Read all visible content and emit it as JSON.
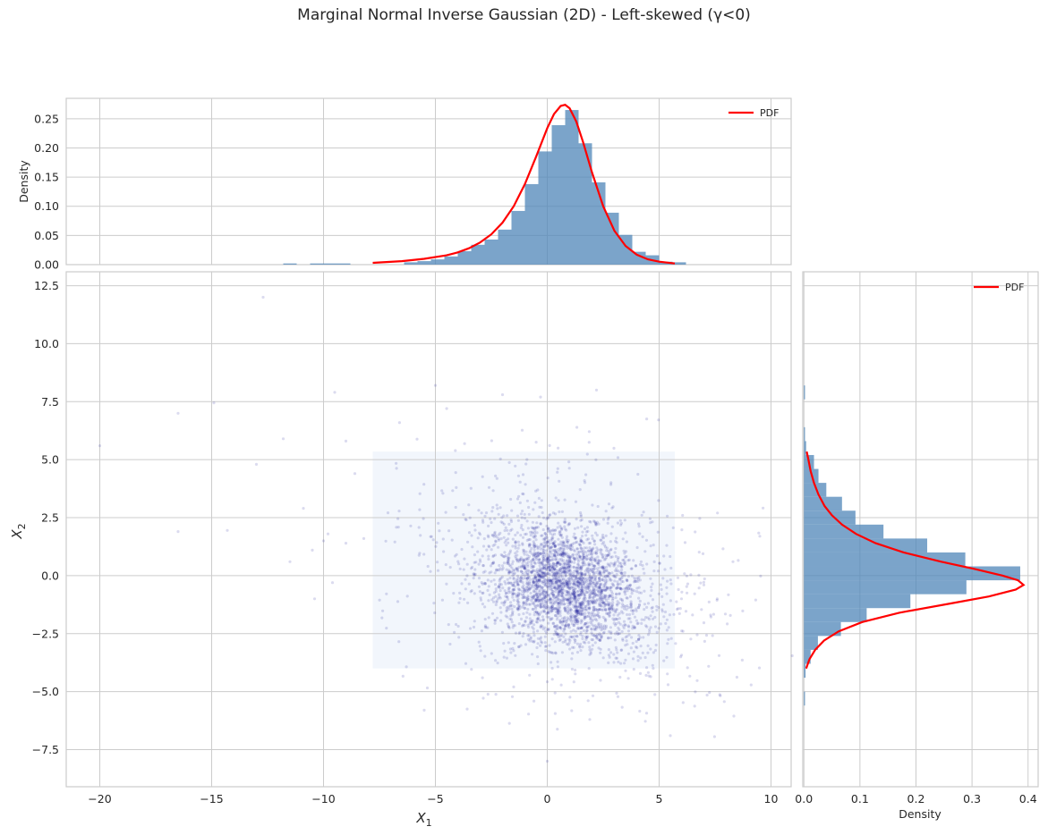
{
  "figure": {
    "suptitle": "Marginal Normal Inverse Gaussian (2D) - Left-skewed (γ<0)",
    "colors": {
      "hist_fill": "#4f86b8",
      "hist_alpha": 0.75,
      "pdf_line": "#ff0000",
      "scatter": "#00008b",
      "grid": "#cccccc",
      "shaded_region": "#dbe6f7"
    }
  },
  "chart_data": [
    {
      "id": "top-marginal",
      "type": "bar",
      "title": "",
      "xlabel": "",
      "ylabel": "Density",
      "xlim": [
        -21.5,
        10.9
      ],
      "ylim": [
        0,
        0.285
      ],
      "yticks": [
        "0.00",
        "0.05",
        "0.10",
        "0.15",
        "0.20",
        "0.25"
      ],
      "ytick_values": [
        0,
        0.05,
        0.1,
        0.15,
        0.2,
        0.25
      ],
      "xtick_values": [
        -20,
        -15,
        -10,
        -5,
        0,
        5,
        10
      ],
      "grid": true,
      "legend": {
        "entries": [
          "PDF"
        ],
        "position": "upper right"
      },
      "histogram": {
        "bin_edges": [
          -11.8,
          -11.2,
          -10.6,
          -10.0,
          -9.4,
          -8.8,
          -8.2,
          -7.6,
          -7.0,
          -6.4,
          -5.8,
          -5.2,
          -4.6,
          -4.0,
          -3.4,
          -2.8,
          -2.2,
          -1.6,
          -1.0,
          -0.4,
          0.2,
          0.8,
          1.4,
          2.0,
          2.6,
          3.2,
          3.8,
          4.4,
          5.0,
          5.6,
          6.2
        ],
        "densities": [
          0.002,
          0,
          0.002,
          0.002,
          0.002,
          0,
          0,
          0,
          0,
          0.004,
          0.006,
          0.009,
          0.014,
          0.023,
          0.034,
          0.043,
          0.06,
          0.092,
          0.138,
          0.194,
          0.239,
          0.265,
          0.208,
          0.141,
          0.089,
          0.051,
          0.022,
          0.016,
          0.005,
          0.004
        ]
      },
      "pdf": {
        "x": [
          -7.8,
          -6.5,
          -5.5,
          -4.5,
          -4.0,
          -3.5,
          -3.0,
          -2.5,
          -2.0,
          -1.5,
          -1.0,
          -0.5,
          0.0,
          0.3,
          0.6,
          0.8,
          1.0,
          1.3,
          1.6,
          2.0,
          2.5,
          3.0,
          3.5,
          4.0,
          4.5,
          5.0,
          5.7
        ],
        "y": [
          0.003,
          0.006,
          0.01,
          0.016,
          0.021,
          0.028,
          0.038,
          0.052,
          0.072,
          0.1,
          0.138,
          0.185,
          0.234,
          0.258,
          0.272,
          0.274,
          0.268,
          0.245,
          0.21,
          0.158,
          0.1,
          0.058,
          0.032,
          0.017,
          0.009,
          0.005,
          0.002
        ]
      }
    },
    {
      "id": "joint-scatter",
      "type": "scatter",
      "xlabel": "X_1",
      "ylabel": "X_2",
      "xlim": [
        -21.5,
        10.9
      ],
      "ylim": [
        -9.1,
        13.1
      ],
      "xticks": [
        "−20",
        "−15",
        "−10",
        "−5",
        "0",
        "5",
        "10"
      ],
      "xtick_values": [
        -20,
        -15,
        -10,
        -5,
        0,
        5,
        10
      ],
      "yticks": [
        "−7.5",
        "−5.0",
        "−2.5",
        "0.0",
        "2.5",
        "5.0",
        "7.5",
        "10.0",
        "12.5"
      ],
      "ytick_values": [
        -7.5,
        -5,
        -2.5,
        0,
        2.5,
        5,
        7.5,
        10,
        12.5
      ],
      "grid": true,
      "shaded_region": {
        "x": [
          -7.8,
          5.7
        ],
        "y": [
          -4.0,
          5.35
        ]
      },
      "cluster": {
        "center": [
          0.8,
          -0.4
        ],
        "n_points": 5000,
        "sd_x": 1.7,
        "sd_y": 1.3,
        "correlation": -0.25
      },
      "outliers": [
        [
          -20.0,
          5.6
        ],
        [
          -16.5,
          1.9
        ],
        [
          -16.5,
          7.0
        ],
        [
          -14.9,
          7.45
        ],
        [
          -14.3,
          1.95
        ],
        [
          -12.7,
          12.0
        ],
        [
          -13.0,
          4.8
        ],
        [
          -11.8,
          5.9
        ],
        [
          -11.5,
          0.6
        ],
        [
          -10.9,
          2.9
        ],
        [
          -10.4,
          -1.0
        ],
        [
          -10.5,
          1.1
        ],
        [
          -10.0,
          1.5
        ],
        [
          -9.8,
          1.8
        ],
        [
          -9.6,
          -0.3
        ],
        [
          -9.5,
          7.9
        ],
        [
          -9.0,
          5.8
        ],
        [
          -9.0,
          1.4
        ],
        [
          -8.6,
          4.4
        ],
        [
          -8.2,
          1.6
        ],
        [
          -5.0,
          8.2
        ],
        [
          -5.5,
          -5.8
        ],
        [
          -2.0,
          7.8
        ],
        [
          -1.5,
          -4.8
        ],
        [
          -0.3,
          7.7
        ],
        [
          1.9,
          -6.2
        ],
        [
          2.2,
          8.0
        ],
        [
          5.5,
          -6.9
        ],
        [
          0.0,
          -8.0
        ],
        [
          7.3,
          -1.7
        ],
        [
          8.3,
          0.6
        ],
        [
          9.5,
          1.7
        ],
        [
          7.0,
          -0.4
        ],
        [
          6.0,
          -1.0
        ]
      ]
    },
    {
      "id": "right-marginal",
      "type": "bar",
      "orientation": "horizontal",
      "xlabel": "Density",
      "ylabel": "",
      "xlim": [
        -0.002,
        0.418
      ],
      "ylim": [
        -9.1,
        13.1
      ],
      "xticks": [
        "0.0",
        "0.1",
        "0.2",
        "0.3",
        "0.4"
      ],
      "xtick_values": [
        0,
        0.1,
        0.2,
        0.3,
        0.4
      ],
      "grid": true,
      "legend": {
        "entries": [
          "PDF"
        ],
        "position": "upper right"
      },
      "histogram": {
        "bin_edges": [
          -5.6,
          -5.0,
          -4.4,
          -3.8,
          -3.2,
          -2.6,
          -2.0,
          -1.4,
          -0.8,
          -0.2,
          0.4,
          1.0,
          1.6,
          2.2,
          2.8,
          3.4,
          4.0,
          4.6,
          5.2,
          5.8,
          6.4,
          7.0,
          7.6,
          8.2
        ],
        "densities": [
          0.002,
          0.0,
          0.003,
          0.012,
          0.025,
          0.066,
          0.112,
          0.19,
          0.29,
          0.386,
          0.288,
          0.22,
          0.142,
          0.092,
          0.068,
          0.04,
          0.026,
          0.018,
          0.004,
          0.002,
          0.0,
          0.0,
          0.002
        ]
      },
      "pdf": {
        "y": [
          -4.0,
          -3.6,
          -3.2,
          -2.8,
          -2.4,
          -2.0,
          -1.6,
          -1.2,
          -0.9,
          -0.6,
          -0.4,
          -0.2,
          0.0,
          0.3,
          0.6,
          1.0,
          1.4,
          1.8,
          2.2,
          2.6,
          3.0,
          3.5,
          4.0,
          4.5,
          5.0,
          5.35
        ],
        "x": [
          0.004,
          0.01,
          0.02,
          0.036,
          0.062,
          0.104,
          0.17,
          0.262,
          0.33,
          0.378,
          0.392,
          0.382,
          0.355,
          0.302,
          0.245,
          0.178,
          0.128,
          0.093,
          0.068,
          0.05,
          0.037,
          0.026,
          0.018,
          0.012,
          0.008,
          0.005
        ]
      }
    }
  ],
  "legend_label": "PDF",
  "axes_labels": {
    "top_ylabel": "Density",
    "main_xlabel_base": "X",
    "main_xlabel_sub": "1",
    "main_ylabel_base": "X",
    "main_ylabel_sub": "2",
    "right_xlabel": "Density"
  }
}
